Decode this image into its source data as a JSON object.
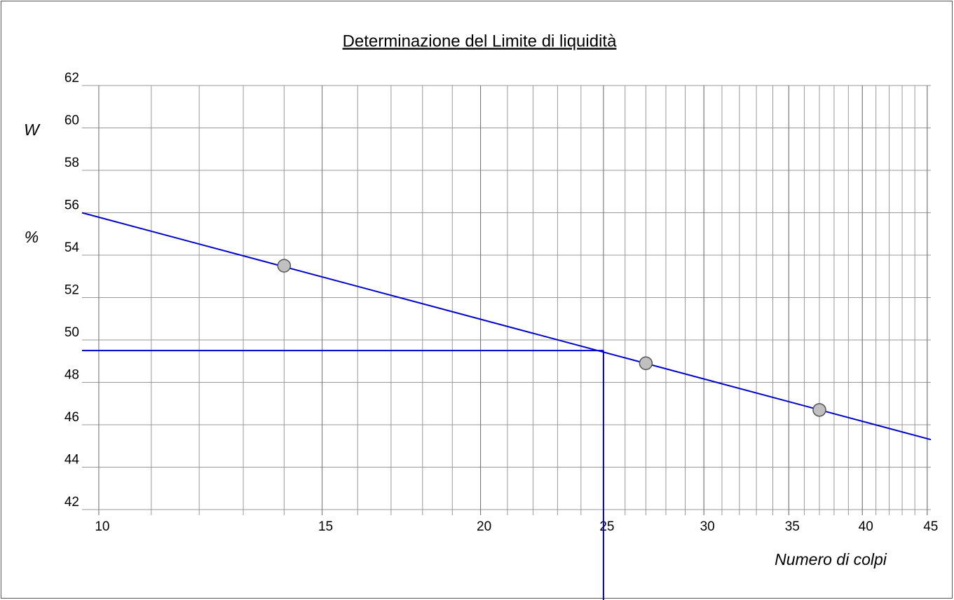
{
  "chart_data": {
    "type": "scatter",
    "title": "Determinazione del Limite di liquidità",
    "xlabel": "Numero di colpi",
    "ylabel": [
      "W",
      "%"
    ],
    "x": [
      14,
      27,
      37
    ],
    "y": [
      53.5,
      48.9,
      46.7
    ],
    "point_color": "#c0c0c0",
    "line_color": "#0000cc",
    "trend": {
      "x": [
        9.7,
        45.3
      ],
      "y": [
        56.0,
        45.3
      ]
    },
    "liquid_limit": {
      "x": 25,
      "y": 49.5
    },
    "xscale": "log",
    "xlim": [
      9.7,
      45.3
    ],
    "xticks": [
      10,
      15,
      20,
      25,
      30,
      35,
      40,
      45
    ],
    "ylim": [
      42,
      62
    ],
    "yticks": [
      42,
      44,
      46,
      48,
      50,
      52,
      54,
      56,
      58,
      60,
      62
    ],
    "grid": true
  }
}
